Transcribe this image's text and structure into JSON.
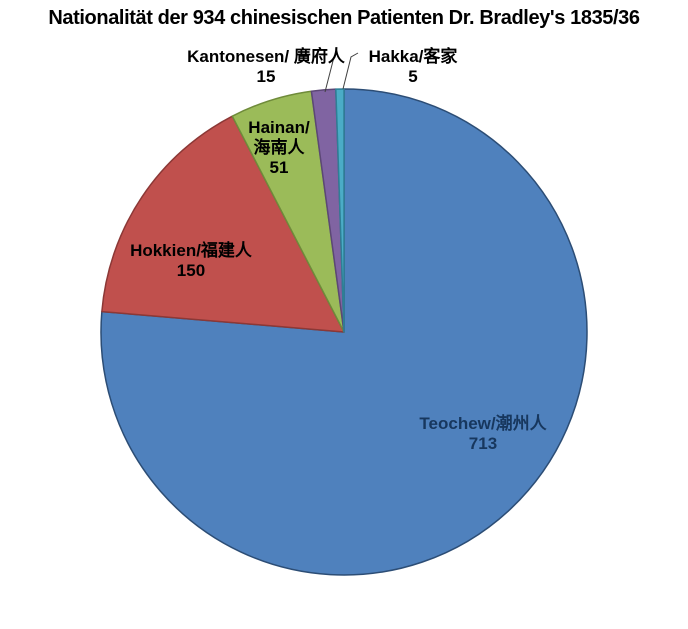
{
  "title": "Nationalität der 934 chinesischen Patienten Dr. Bradley's 1835/36",
  "chart_data": {
    "type": "pie",
    "title": "Nationalität der 934 chinesischen Patienten Dr. Bradley's 1835/36",
    "total": 934,
    "start_angle_deg": 0,
    "direction": "clockwise",
    "background_color": "#FFFFFF",
    "legend": "none",
    "slices": [
      {
        "name": "teochew",
        "label_lines": [
          "Teochew/潮州人"
        ],
        "value": 713,
        "color": "#4F81BD",
        "border_color": "#2C4D75",
        "label_color": "#17375E",
        "label_placement": "inside"
      },
      {
        "name": "hokkien",
        "label_lines": [
          "Hokkien/福建人"
        ],
        "value": 150,
        "color": "#C0504D",
        "border_color": "#8C3836",
        "label_color": "#000000",
        "label_placement": "inside"
      },
      {
        "name": "hainan",
        "label_lines": [
          "Hainan/",
          "海南人"
        ],
        "value": 51,
        "color": "#9BBB59",
        "border_color": "#6F8B3A",
        "label_color": "#000000",
        "label_placement": "inside"
      },
      {
        "name": "kantonesen",
        "label_lines": [
          "Kantonesen/ 廣府人"
        ],
        "value": 15,
        "color": "#8064A2",
        "border_color": "#5C4776",
        "label_color": "#000000",
        "label_placement": "outside"
      },
      {
        "name": "hakka",
        "label_lines": [
          "Hakka/客家"
        ],
        "value": 5,
        "color": "#4BACC6",
        "border_color": "#2E7F96",
        "label_color": "#000000",
        "label_placement": "outside"
      }
    ],
    "leader_line_color": "#404040"
  }
}
